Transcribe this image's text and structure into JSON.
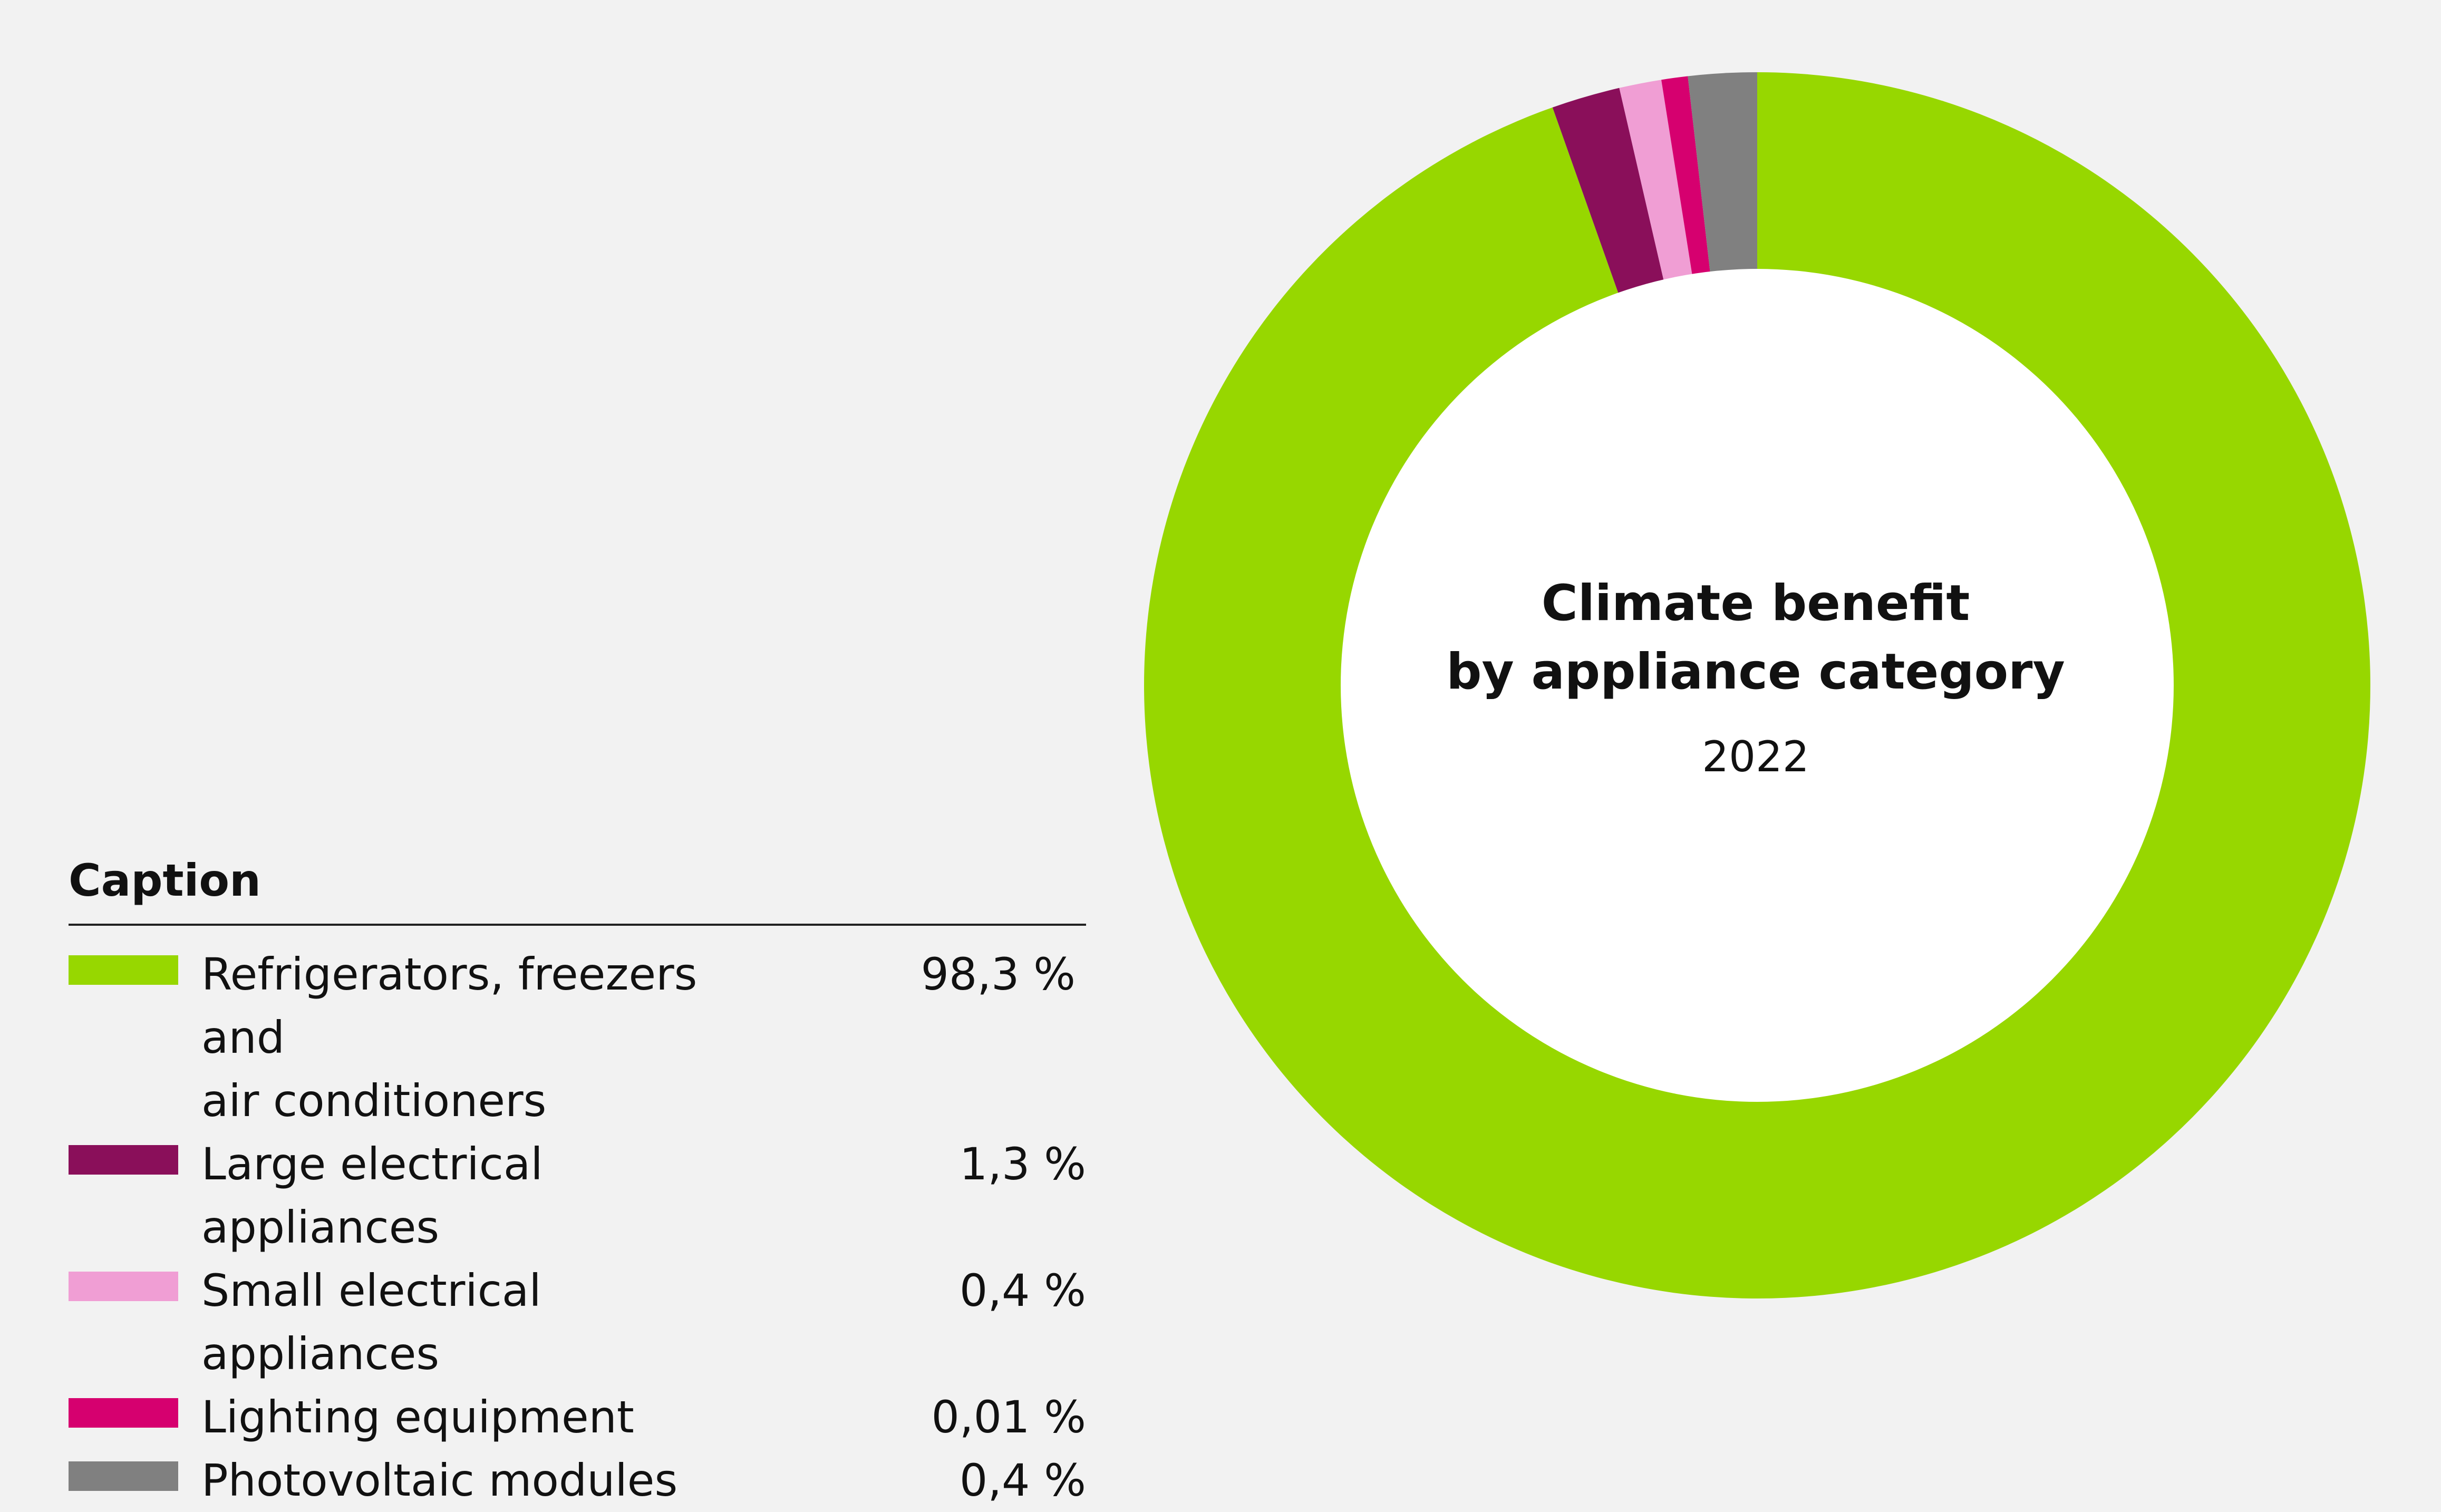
{
  "chart_data": {
    "type": "pie",
    "style": "donut",
    "title": "Climate benefit by appliance category",
    "title_lines": [
      "Climate benefit",
      "by appliance category"
    ],
    "subtitle": "2022",
    "legend_title": "Caption",
    "legend_position": "bottom-left",
    "series": [
      {
        "name": "Refrigerators, freezers and air conditioners",
        "label_lines": [
          "Refrigerators, freezers and",
          "air conditioners"
        ],
        "value": 98.3,
        "value_label": "98,3 %",
        "color": "#97d700"
      },
      {
        "name": "Large electrical appliances",
        "label_lines": [
          "Large electrical appliances"
        ],
        "value": 1.3,
        "value_label": "1,3 %",
        "color": "#8a0f5a"
      },
      {
        "name": "Small electrical appliances",
        "label_lines": [
          "Small electrical appliances"
        ],
        "value": 0.4,
        "value_label": "0,4 %",
        "color": "#f09ed4"
      },
      {
        "name": "Lighting equipment",
        "label_lines": [
          "Lighting equipment"
        ],
        "value": 0.01,
        "value_label": "0,01 %",
        "color": "#d6006f"
      },
      {
        "name": "Photovoltaic modules",
        "label_lines": [
          "Photovoltaic modules"
        ],
        "value": 0.4,
        "value_label": "0,4 %",
        "color": "#808080"
      }
    ],
    "display_angles_deg": [
      {
        "name": "Refrigerators, freezers and air conditioners",
        "start": 0,
        "end": 340.5
      },
      {
        "name": "Large electrical appliances",
        "start": 340.5,
        "end": 347.0
      },
      {
        "name": "Small electrical appliances",
        "start": 347.0,
        "end": 351.0
      },
      {
        "name": "Lighting equipment",
        "start": 351.0,
        "end": 353.5
      },
      {
        "name": "Photovoltaic modules",
        "start": 353.5,
        "end": 360
      }
    ]
  }
}
